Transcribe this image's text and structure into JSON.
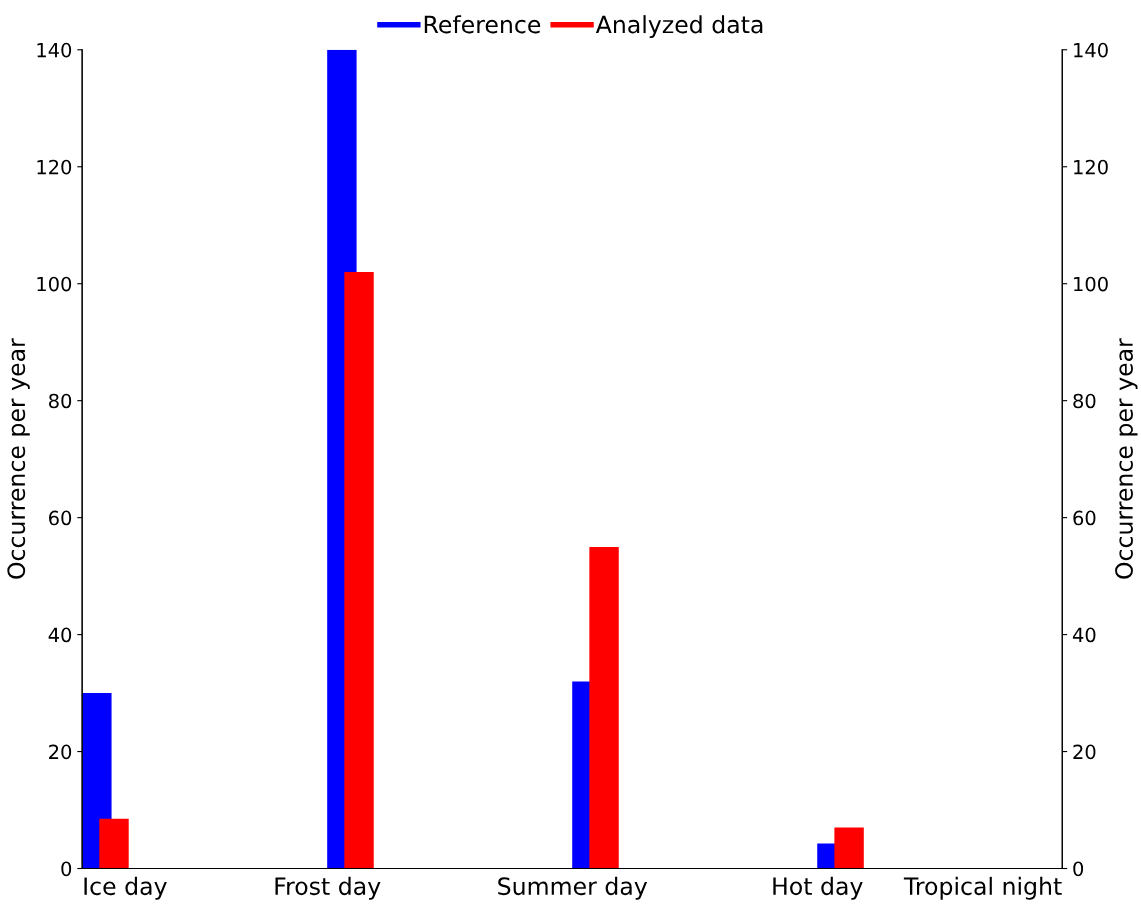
{
  "chart_data": {
    "type": "bar",
    "categories": [
      "Ice day",
      "Frost day",
      "Summer day",
      "Hot day",
      "Tropical night"
    ],
    "series": [
      {
        "name": "Reference",
        "color": "#0000ff",
        "values": [
          30,
          140,
          32,
          4.3,
          0
        ]
      },
      {
        "name": "Analyzed data",
        "color": "#ff0000",
        "values": [
          8.5,
          102,
          55,
          7,
          0
        ]
      }
    ],
    "ylabel": "Occurrence per year",
    "y2label": "Occurrence per year",
    "ylim": [
      0,
      140
    ],
    "yticks": [
      0,
      20,
      40,
      60,
      80,
      100,
      120,
      140
    ],
    "y2lim": [
      0,
      140
    ],
    "y2ticks": [
      0,
      20,
      40,
      60,
      80,
      100,
      120,
      140
    ],
    "legend": "top",
    "grid": false
  }
}
